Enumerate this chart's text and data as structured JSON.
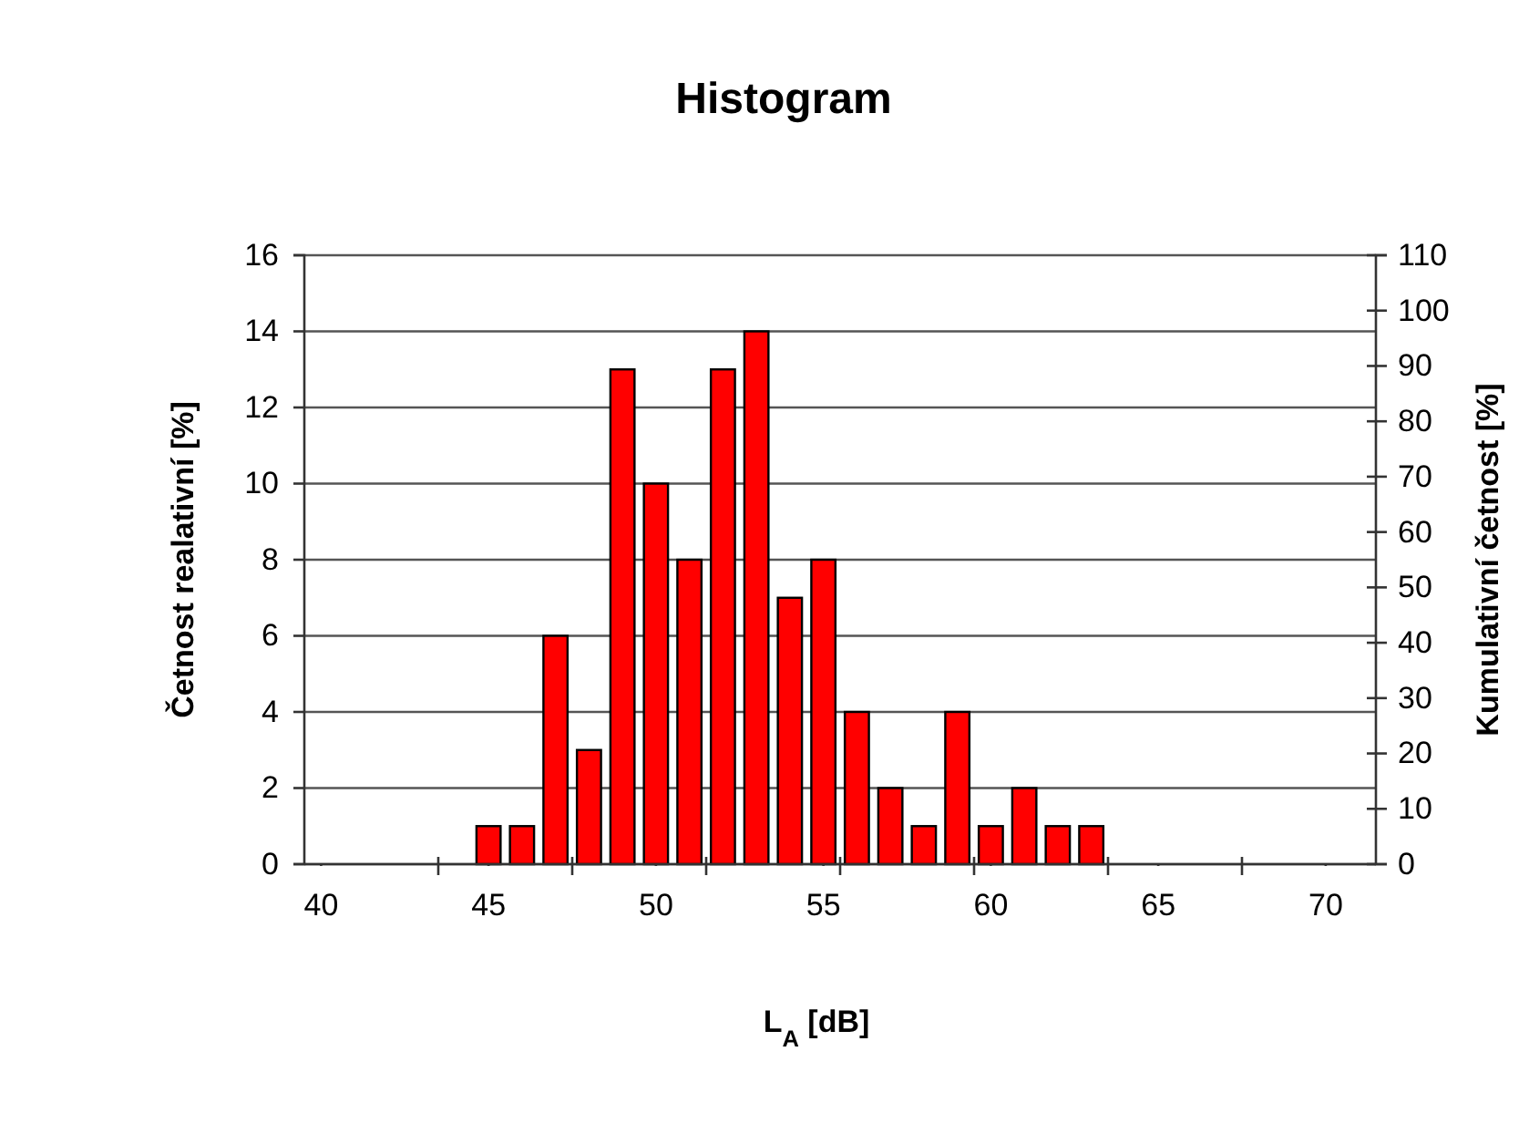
{
  "chart_data": {
    "type": "bar",
    "title": "Histogram",
    "xlabel": "L$_{A}$ [dB]",
    "ylabel": "Četnost realativní [%]",
    "y2label": "Kumulativní četnost [%]",
    "x": [
      45,
      46,
      47,
      48,
      49,
      50,
      51,
      52,
      53,
      54,
      55,
      56,
      57,
      58,
      59,
      60,
      61,
      62,
      63
    ],
    "series": [
      {
        "color": "#ff0000",
        "values": [
          1,
          1,
          6,
          3,
          13,
          10,
          8,
          13,
          14,
          7,
          8,
          4,
          2,
          1,
          4,
          1,
          2,
          1,
          1
        ]
      }
    ],
    "xlim": [
      39.5,
      71.5
    ],
    "xticks": [
      40,
      {
        "value": 43.5,
        "label": null
      },
      45,
      {
        "value": 47.5,
        "label": null
      },
      50,
      {
        "value": 51.5,
        "label": null
      },
      55,
      {
        "value": 55.5,
        "label": null
      },
      {
        "value": 59.5,
        "label": null
      },
      60,
      {
        "value": 63.5,
        "label": null
      },
      65,
      {
        "value": 67.5,
        "label": null
      },
      70
    ],
    "ylim": [
      0,
      16
    ],
    "yticks": [
      0,
      2,
      4,
      6,
      8,
      10,
      12,
      14,
      16
    ],
    "y2lim": [
      0,
      110
    ],
    "y2ticks": [
      0,
      10,
      20,
      30,
      40,
      50,
      60,
      70,
      80,
      90,
      100,
      110
    ],
    "grid": "y"
  }
}
